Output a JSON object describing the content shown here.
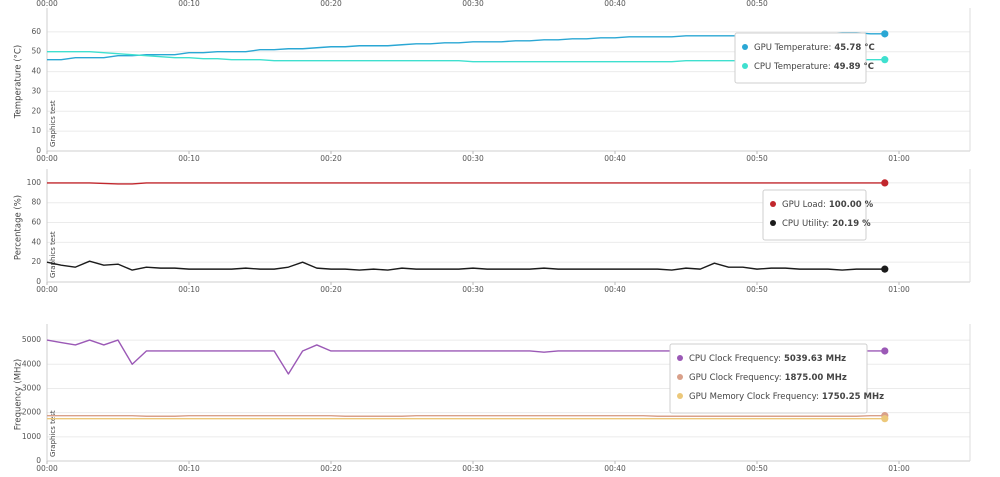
{
  "chart_data": [
    {
      "type": "line",
      "ylabel": "Temperature (°C)",
      "annotation": "Graphics test",
      "top_xticks": [
        {
          "value": 0,
          "label": "00:00"
        },
        {
          "value": 10,
          "label": "00:10"
        },
        {
          "value": 20,
          "label": "00:20"
        },
        {
          "value": 30,
          "label": "00:30"
        },
        {
          "value": 40,
          "label": "00:40"
        },
        {
          "value": 50,
          "label": "00:50"
        }
      ],
      "x": [
        0,
        1,
        2,
        3,
        4,
        5,
        6,
        7,
        8,
        9,
        10,
        11,
        12,
        13,
        14,
        15,
        16,
        17,
        18,
        19,
        20,
        21,
        22,
        23,
        24,
        25,
        26,
        27,
        28,
        29,
        30,
        31,
        32,
        33,
        34,
        35,
        36,
        37,
        38,
        39,
        40,
        41,
        42,
        43,
        44,
        45,
        46,
        47,
        48,
        49,
        50,
        51,
        52,
        53,
        54,
        55,
        56,
        57,
        58,
        59
      ],
      "xlim": [
        0,
        65
      ],
      "xticks": [
        {
          "value": 0,
          "label": "00:00"
        },
        {
          "value": 10,
          "label": "00:10"
        },
        {
          "value": 20,
          "label": "00:20"
        },
        {
          "value": 30,
          "label": "00:30"
        },
        {
          "value": 40,
          "label": "00:40"
        },
        {
          "value": 50,
          "label": "00:50"
        },
        {
          "value": 60,
          "label": "01:00"
        }
      ],
      "ylim": [
        0,
        70
      ],
      "yticks": [
        0,
        10,
        20,
        30,
        40,
        50,
        60
      ],
      "grid": true,
      "series": [
        {
          "name": "GPU Temperature:",
          "tooltip_value": "45.78 °C",
          "color": "#2aa7d4",
          "values": [
            46,
            46,
            47,
            47,
            47,
            48,
            48,
            48.5,
            48.5,
            48.5,
            49.5,
            49.5,
            50,
            50,
            50,
            51,
            51,
            51.5,
            51.5,
            52,
            52.5,
            52.5,
            53,
            53,
            53,
            53.5,
            54,
            54,
            54.5,
            54.5,
            55,
            55,
            55,
            55.5,
            55.5,
            56,
            56,
            56.5,
            56.5,
            57,
            57,
            57.5,
            57.5,
            57.5,
            57.5,
            58,
            58,
            58,
            58,
            58,
            58.5,
            58.5,
            58.5,
            58.5,
            58.5,
            59,
            59.5,
            59.5,
            59,
            59
          ]
        },
        {
          "name": "CPU Temperature:",
          "tooltip_value": "49.89 °C",
          "color": "#3fe0cf",
          "values": [
            50,
            50,
            50,
            50,
            49.5,
            49,
            48.5,
            48,
            47.5,
            47,
            47,
            46.5,
            46.5,
            46,
            46,
            46,
            45.5,
            45.5,
            45.5,
            45.5,
            45.5,
            45.5,
            45.5,
            45.5,
            45.5,
            45.5,
            45.5,
            45.5,
            45.5,
            45.5,
            45,
            45,
            45,
            45,
            45,
            45,
            45,
            45,
            45,
            45,
            45,
            45,
            45,
            45,
            45,
            45.5,
            45.5,
            45.5,
            45.5,
            45.5,
            45.5,
            45.5,
            45.5,
            45.5,
            45.5,
            45.5,
            45.5,
            46,
            46,
            46
          ]
        }
      ]
    },
    {
      "type": "line",
      "ylabel": "Percentage (%)",
      "annotation": "Graphics test",
      "x": [
        0,
        1,
        2,
        3,
        4,
        5,
        6,
        7,
        8,
        9,
        10,
        11,
        12,
        13,
        14,
        15,
        16,
        17,
        18,
        19,
        20,
        21,
        22,
        23,
        24,
        25,
        26,
        27,
        28,
        29,
        30,
        31,
        32,
        33,
        34,
        35,
        36,
        37,
        38,
        39,
        40,
        41,
        42,
        43,
        44,
        45,
        46,
        47,
        48,
        49,
        50,
        51,
        52,
        53,
        54,
        55,
        56,
        57,
        58,
        59
      ],
      "xlim": [
        0,
        65
      ],
      "xticks": [
        {
          "value": 0,
          "label": "00:00"
        },
        {
          "value": 10,
          "label": "00:10"
        },
        {
          "value": 20,
          "label": "00:20"
        },
        {
          "value": 30,
          "label": "00:30"
        },
        {
          "value": 40,
          "label": "00:40"
        },
        {
          "value": 50,
          "label": "00:50"
        },
        {
          "value": 60,
          "label": "01:00"
        }
      ],
      "ylim": [
        0,
        110
      ],
      "yticks": [
        0,
        20,
        40,
        60,
        80,
        100
      ],
      "grid": true,
      "series": [
        {
          "name": "GPU Load:",
          "tooltip_value": "100.00 %",
          "color": "#c1272d",
          "values": [
            100,
            100,
            100,
            100,
            99.5,
            99,
            99,
            100,
            100,
            100,
            100,
            100,
            100,
            100,
            100,
            100,
            100,
            100,
            100,
            100,
            100,
            100,
            100,
            100,
            100,
            100,
            100,
            100,
            100,
            100,
            100,
            100,
            100,
            100,
            100,
            100,
            100,
            100,
            100,
            100,
            100,
            100,
            100,
            100,
            100,
            100,
            100,
            100,
            100,
            100,
            100,
            100,
            100,
            100,
            100,
            100,
            100,
            100,
            100,
            100
          ]
        },
        {
          "name": "CPU Utility:",
          "tooltip_value": "20.19 %",
          "color": "#1b1b1b",
          "values": [
            20,
            17,
            15,
            21,
            17,
            18,
            12,
            15,
            14,
            14,
            13,
            13,
            13,
            13,
            14,
            13,
            13,
            15,
            20,
            14,
            13,
            13,
            12,
            13,
            12,
            14,
            13,
            13,
            13,
            13,
            14,
            13,
            13,
            13,
            13,
            14,
            13,
            13,
            13,
            13,
            13,
            13,
            13,
            13,
            12,
            14,
            13,
            19,
            15,
            15,
            13,
            14,
            14,
            13,
            13,
            13,
            12,
            13,
            13,
            13
          ]
        }
      ]
    },
    {
      "type": "line",
      "ylabel": "Frequency (MHz)",
      "annotation": "Graphics test",
      "x": [
        0,
        1,
        2,
        3,
        4,
        5,
        6,
        7,
        8,
        9,
        10,
        11,
        12,
        13,
        14,
        15,
        16,
        17,
        18,
        19,
        20,
        21,
        22,
        23,
        24,
        25,
        26,
        27,
        28,
        29,
        30,
        31,
        32,
        33,
        34,
        35,
        36,
        37,
        38,
        39,
        40,
        41,
        42,
        43,
        44,
        45,
        46,
        47,
        48,
        49,
        50,
        51,
        52,
        53,
        54,
        55,
        56,
        57,
        58,
        59
      ],
      "xlim": [
        0,
        65
      ],
      "xticks": [
        {
          "value": 0,
          "label": "00:00"
        },
        {
          "value": 10,
          "label": "00:10"
        },
        {
          "value": 20,
          "label": "00:20"
        },
        {
          "value": 30,
          "label": "00:30"
        },
        {
          "value": 40,
          "label": "00:40"
        },
        {
          "value": 50,
          "label": "00:50"
        },
        {
          "value": 60,
          "label": "01:00"
        }
      ],
      "ylim": [
        0,
        5500
      ],
      "yticks": [
        0,
        1000,
        2000,
        3000,
        4000,
        5000
      ],
      "grid": true,
      "series": [
        {
          "name": "CPU Clock Frequency:",
          "tooltip_value": "5039.63 MHz",
          "color": "#9b59b6",
          "values": [
            5000,
            4900,
            4800,
            5000,
            4800,
            5000,
            4000,
            4550,
            4550,
            4550,
            4550,
            4550,
            4550,
            4550,
            4550,
            4550,
            4550,
            3600,
            4550,
            4800,
            4550,
            4550,
            4550,
            4550,
            4550,
            4550,
            4550,
            4550,
            4550,
            4550,
            4550,
            4550,
            4550,
            4550,
            4550,
            4500,
            4550,
            4550,
            4550,
            4550,
            4550,
            4550,
            4550,
            4550,
            4550,
            4550,
            4550,
            4550,
            4550,
            4550,
            4550,
            4550,
            4550,
            4550,
            4550,
            4550,
            4550,
            4550,
            4550,
            4550
          ]
        },
        {
          "name": "GPU Clock Frequency:",
          "tooltip_value": "1875.00 MHz",
          "color": "#d9a08a",
          "values": [
            1875,
            1875,
            1875,
            1875,
            1875,
            1875,
            1875,
            1850,
            1850,
            1850,
            1875,
            1875,
            1875,
            1875,
            1875,
            1875,
            1875,
            1875,
            1875,
            1875,
            1875,
            1850,
            1850,
            1850,
            1850,
            1850,
            1875,
            1875,
            1875,
            1875,
            1875,
            1875,
            1875,
            1875,
            1875,
            1875,
            1875,
            1875,
            1875,
            1875,
            1875,
            1875,
            1875,
            1850,
            1850,
            1850,
            1850,
            1850,
            1850,
            1850,
            1850,
            1850,
            1850,
            1850,
            1850,
            1850,
            1850,
            1850,
            1875,
            1875
          ]
        },
        {
          "name": "GPU Memory Clock Frequency:",
          "tooltip_value": "1750.25 MHz",
          "color": "#ecc87a",
          "values": [
            1750,
            1750,
            1750,
            1750,
            1750,
            1750,
            1750,
            1750,
            1750,
            1750,
            1750,
            1750,
            1750,
            1750,
            1750,
            1750,
            1750,
            1750,
            1750,
            1750,
            1750,
            1750,
            1750,
            1750,
            1750,
            1750,
            1750,
            1750,
            1750,
            1750,
            1750,
            1750,
            1750,
            1750,
            1750,
            1750,
            1750,
            1750,
            1750,
            1750,
            1750,
            1750,
            1750,
            1750,
            1750,
            1750,
            1750,
            1750,
            1750,
            1750,
            1750,
            1750,
            1750,
            1750,
            1750,
            1750,
            1750,
            1750,
            1750,
            1750
          ]
        }
      ]
    }
  ]
}
